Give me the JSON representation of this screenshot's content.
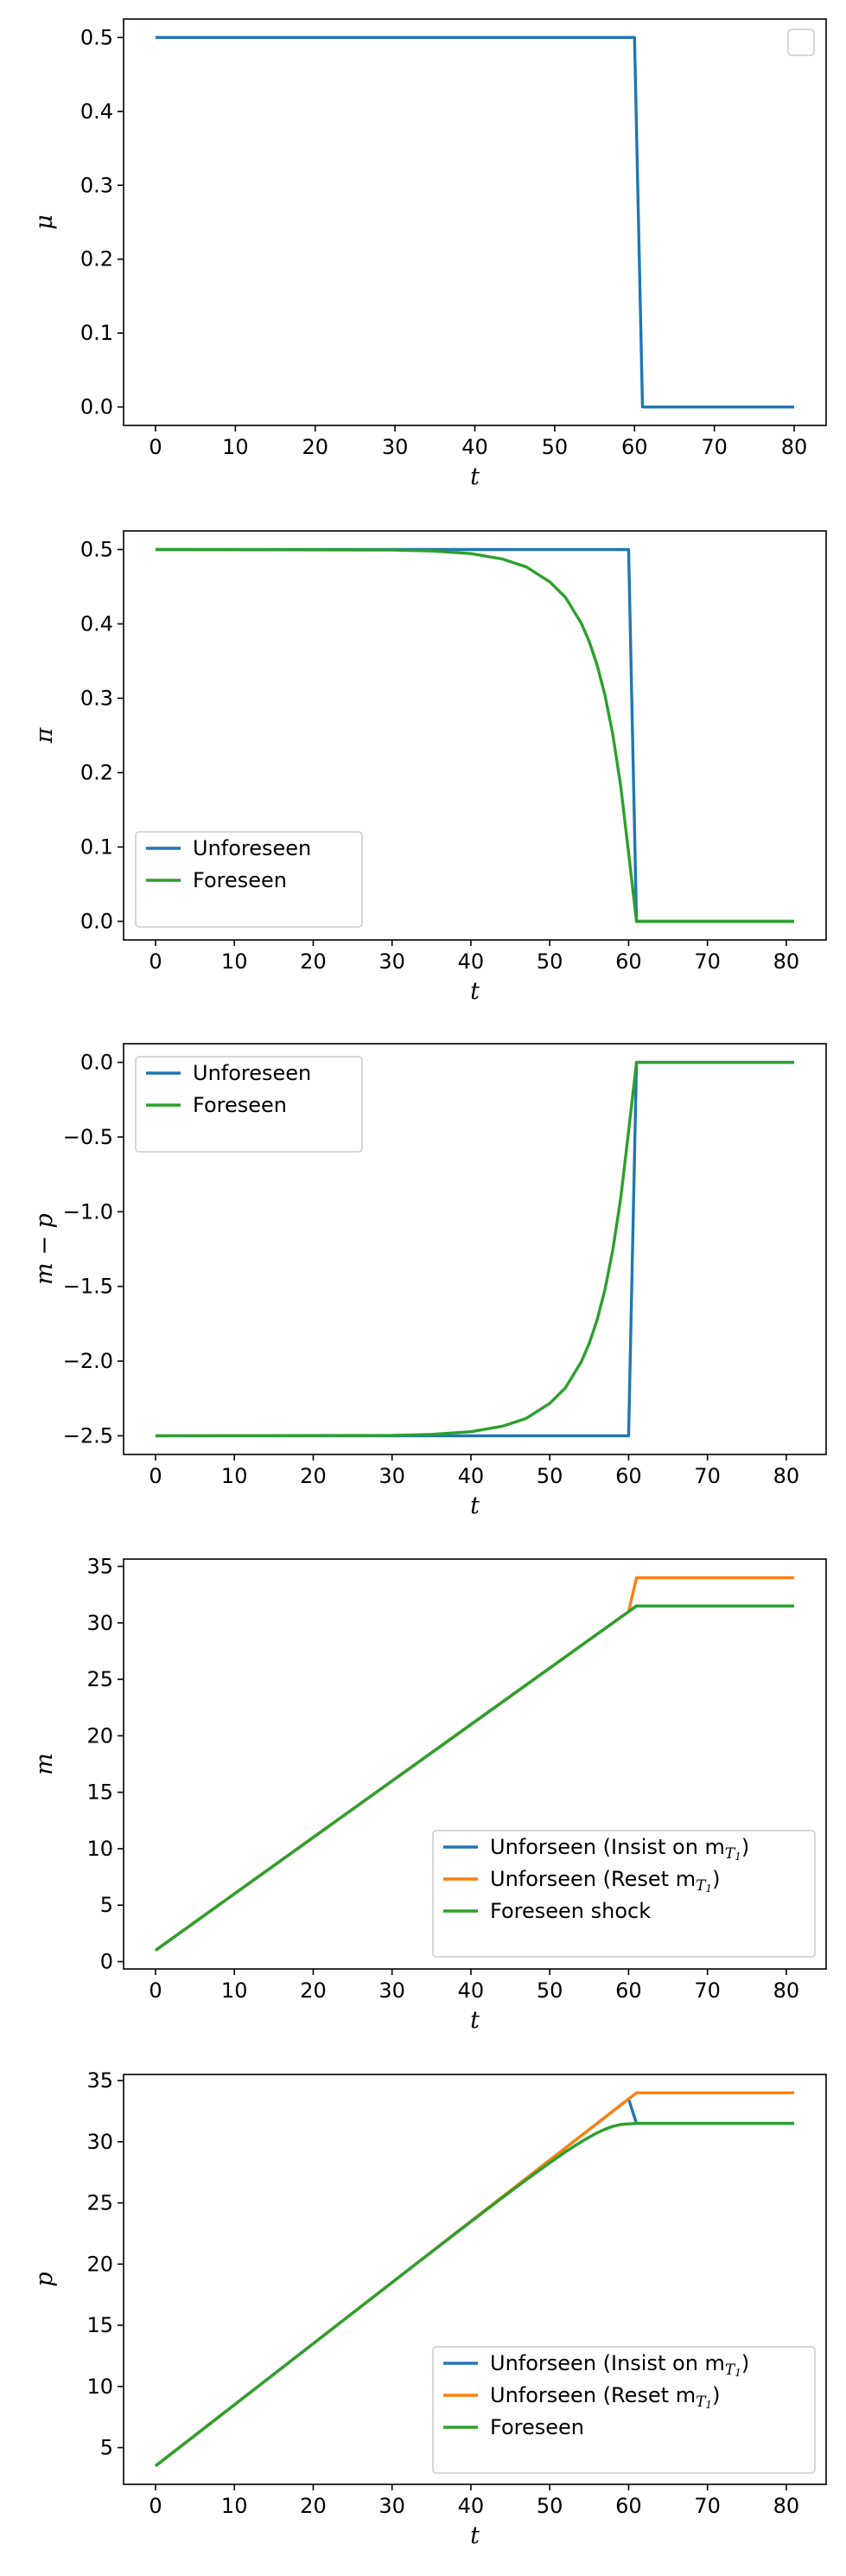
{
  "chart_data": [
    {
      "type": "line",
      "xlabel": "t",
      "ylabel": "μ",
      "xlim": [
        -4,
        84
      ],
      "ylim": [
        -0.025,
        0.525
      ],
      "xticks": [
        "0",
        "10",
        "20",
        "30",
        "40",
        "50",
        "60",
        "70",
        "80"
      ],
      "yticks": [
        "0.0",
        "0.1",
        "0.2",
        "0.3",
        "0.4",
        "0.5"
      ],
      "legend": "top-right, empty",
      "series": [
        {
          "color": "#1f77b4",
          "points": [
            [
              0,
              0.5
            ],
            [
              60,
              0.5
            ],
            [
              61,
              0
            ],
            [
              80,
              0
            ]
          ]
        }
      ]
    },
    {
      "type": "line",
      "xlabel": "t",
      "ylabel": "π",
      "xlim": [
        -4.05,
        85.05
      ],
      "ylim": [
        -0.025,
        0.525
      ],
      "xticks": [
        "0",
        "10",
        "20",
        "30",
        "40",
        "50",
        "60",
        "70",
        "80"
      ],
      "yticks": [
        "0.0",
        "0.1",
        "0.2",
        "0.3",
        "0.4",
        "0.5"
      ],
      "legend": "lower-left",
      "series": [
        {
          "name": "Unforeseen",
          "color": "#1f77b4",
          "points": [
            [
              0,
              0.5
            ],
            [
              60,
              0.5
            ],
            [
              61,
              0
            ],
            [
              81,
              0
            ]
          ]
        },
        {
          "name": "Foreseen",
          "color": "#2ca02c",
          "points": [
            [
              0,
              0.5
            ],
            [
              30,
              0.4994
            ],
            [
              35,
              0.4981
            ],
            [
              40,
              0.4945
            ],
            [
              44,
              0.4872
            ],
            [
              47,
              0.4768
            ],
            [
              50,
              0.4566
            ],
            [
              52,
              0.4356
            ],
            [
              54,
              0.4009
            ],
            [
              55,
              0.3764
            ],
            [
              56,
              0.345
            ],
            [
              57,
              0.3042
            ],
            [
              58,
              0.251
            ],
            [
              59,
              0.1819
            ],
            [
              60,
              0.092
            ],
            [
              61,
              0
            ],
            [
              81,
              0
            ]
          ]
        }
      ]
    },
    {
      "type": "line",
      "xlabel": "t",
      "ylabel": "m − p",
      "xlim": [
        -4.05,
        85.05
      ],
      "ylim": [
        -2.625,
        0.125
      ],
      "xticks": [
        "0",
        "10",
        "20",
        "30",
        "40",
        "50",
        "60",
        "70",
        "80"
      ],
      "yticks": [
        "−2.5",
        "−2.0",
        "−1.5",
        "−1.0",
        "−0.5",
        "0.0"
      ],
      "legend": "upper-left",
      "series": [
        {
          "name": "Unforeseen",
          "color": "#1f77b4",
          "points": [
            [
              0,
              -2.5
            ],
            [
              60,
              -2.5
            ],
            [
              61,
              0
            ],
            [
              81,
              0
            ]
          ]
        },
        {
          "name": "Foreseen",
          "color": "#2ca02c",
          "points": [
            [
              0,
              -2.5
            ],
            [
              30,
              -2.497
            ],
            [
              35,
              -2.4905
            ],
            [
              40,
              -2.4725
            ],
            [
              44,
              -2.436
            ],
            [
              47,
              -2.384
            ],
            [
              50,
              -2.283
            ],
            [
              52,
              -2.178
            ],
            [
              54,
              -2.0045
            ],
            [
              55,
              -1.882
            ],
            [
              56,
              -1.725
            ],
            [
              57,
              -1.521
            ],
            [
              58,
              -1.255
            ],
            [
              59,
              -0.9095
            ],
            [
              60,
              -0.46
            ],
            [
              61,
              0
            ],
            [
              81,
              0
            ]
          ]
        }
      ]
    },
    {
      "type": "line",
      "xlabel": "t",
      "ylabel": "m",
      "xlim": [
        -4.05,
        85.05
      ],
      "ylim": [
        -0.65,
        35.65
      ],
      "xticks": [
        "0",
        "10",
        "20",
        "30",
        "40",
        "50",
        "60",
        "70",
        "80"
      ],
      "yticks": [
        "0",
        "5",
        "10",
        "15",
        "20",
        "25",
        "30",
        "35"
      ],
      "legend": "lower-right",
      "series": [
        {
          "name": "Unforseen (Insist on m",
          "sub": "T",
          "subsub": "1",
          "close": ")",
          "color": "#1f77b4",
          "points": [
            [
              0,
              1
            ],
            [
              60,
              31
            ],
            [
              61,
              31.5
            ],
            [
              81,
              31.5
            ]
          ]
        },
        {
          "name": "Unforseen (Reset m",
          "sub": "T",
          "subsub": "1",
          "close": ")",
          "color": "#ff7f0e",
          "points": [
            [
              0,
              1
            ],
            [
              60,
              31
            ],
            [
              61,
              34
            ],
            [
              81,
              34
            ]
          ]
        },
        {
          "name": "Foreseen shock",
          "color": "#2ca02c",
          "points": [
            [
              0,
              1
            ],
            [
              60,
              31
            ],
            [
              61,
              31.5
            ],
            [
              81,
              31.5
            ]
          ]
        }
      ]
    },
    {
      "type": "line",
      "xlabel": "t",
      "ylabel": "p",
      "xlim": [
        -4.05,
        85.05
      ],
      "ylim": [
        2.0,
        35.5
      ],
      "xticks": [
        "0",
        "10",
        "20",
        "30",
        "40",
        "50",
        "60",
        "70",
        "80"
      ],
      "yticks": [
        "5",
        "10",
        "15",
        "20",
        "25",
        "30",
        "35"
      ],
      "legend": "lower-right",
      "series": [
        {
          "name": "Unforseen (Insist on m",
          "sub": "T",
          "subsub": "1",
          "close": ")",
          "color": "#1f77b4",
          "points": [
            [
              0,
              3.5
            ],
            [
              60,
              33.5
            ],
            [
              61,
              31.5
            ],
            [
              81,
              31.5
            ]
          ]
        },
        {
          "name": "Unforseen (Reset m",
          "sub": "T",
          "subsub": "1",
          "close": ")",
          "color": "#ff7f0e",
          "points": [
            [
              0,
              3.5
            ],
            [
              60,
              33.5
            ],
            [
              61,
              34
            ],
            [
              81,
              34
            ]
          ]
        },
        {
          "name": "Foreseen",
          "color": "#2ca02c",
          "points": [
            [
              0,
              3.5
            ],
            [
              30,
              18.5
            ],
            [
              35,
              20.99
            ],
            [
              40,
              23.47
            ],
            [
              44,
              25.44
            ],
            [
              47,
              26.88
            ],
            [
              50,
              28.28
            ],
            [
              52,
              29.18
            ],
            [
              54,
              30
            ],
            [
              55,
              30.38
            ],
            [
              56,
              30.73
            ],
            [
              57,
              31.02
            ],
            [
              58,
              31.26
            ],
            [
              59,
              31.41
            ],
            [
              60,
              31.46
            ],
            [
              61,
              31.5
            ],
            [
              81,
              31.5
            ]
          ]
        }
      ]
    }
  ]
}
